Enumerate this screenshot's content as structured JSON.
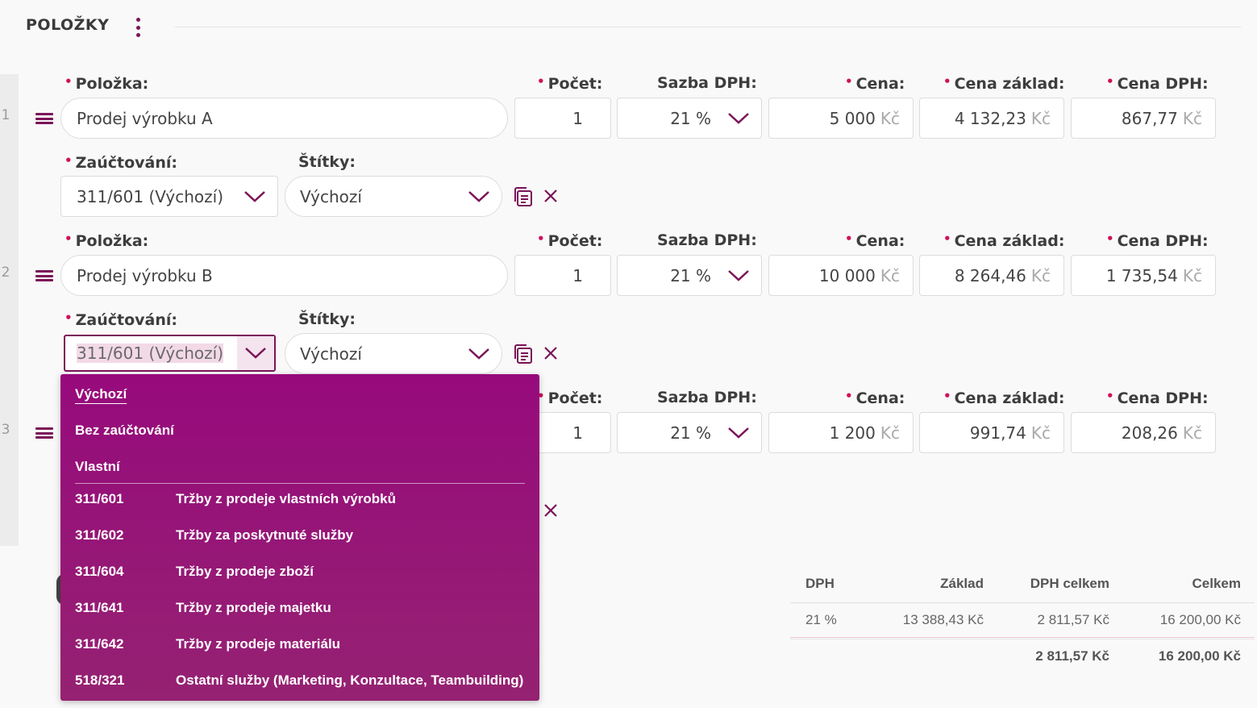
{
  "header": {
    "title": "POLOŽKY"
  },
  "labels": {
    "polozka": "Položka:",
    "pocet": "Počet:",
    "sazba": "Sazba DPH:",
    "cena": "Cena:",
    "cena_zaklad": "Cena základ:",
    "cena_dph": "Cena DPH:",
    "zauctovani": "Zaúčtování:",
    "stitky": "Štítky:"
  },
  "currency": "Kč",
  "rows": [
    {
      "num": "1",
      "polozka": "Prodej výrobku A",
      "pocet": "1",
      "sazba": "21 %",
      "cena": "5 000",
      "cena_zaklad": "4 132,23",
      "cena_dph": "867,77",
      "zauctovani": "311/601 (Výchozí)",
      "stitky": "Výchozí"
    },
    {
      "num": "2",
      "polozka": "Prodej výrobku B",
      "pocet": "1",
      "sazba": "21 %",
      "cena": "10 000",
      "cena_zaklad": "8 264,46",
      "cena_dph": "1 735,54",
      "zauctovani": "311/601 (Výchozí)",
      "stitky": "Výchozí"
    },
    {
      "num": "3",
      "pocet": "1",
      "sazba": "21 %",
      "cena": "1 200",
      "cena_zaklad": "991,74",
      "cena_dph": "208,26"
    }
  ],
  "dropdown": {
    "options": [
      "Výchozí",
      "Bez zaúčtování",
      "Vlastní"
    ],
    "accounts": [
      {
        "code": "311/601",
        "name": "Tržby z prodeje vlastních výrobků"
      },
      {
        "code": "311/602",
        "name": "Tržby za poskytnuté služby"
      },
      {
        "code": "311/604",
        "name": "Tržby z prodeje zboží"
      },
      {
        "code": "311/641",
        "name": "Tržby z prodeje majetku"
      },
      {
        "code": "311/642",
        "name": "Tržby z prodeje materiálu"
      },
      {
        "code": "518/321",
        "name": "Ostatní služby (Marketing, Konzultace, Teambuilding)"
      }
    ]
  },
  "summary": {
    "headers": [
      "DPH",
      "Základ",
      "DPH celkem",
      "Celkem"
    ],
    "row": [
      "21 %",
      "13 388,43 Kč",
      "2 811,57 Kč",
      "16 200,00 Kč"
    ],
    "totals": [
      "2 811,57 Kč",
      "16 200,00 Kč"
    ]
  },
  "colors": {
    "accent": "#7a1458",
    "required": "#d0105a",
    "dropdown_bg": "#970a7c"
  }
}
